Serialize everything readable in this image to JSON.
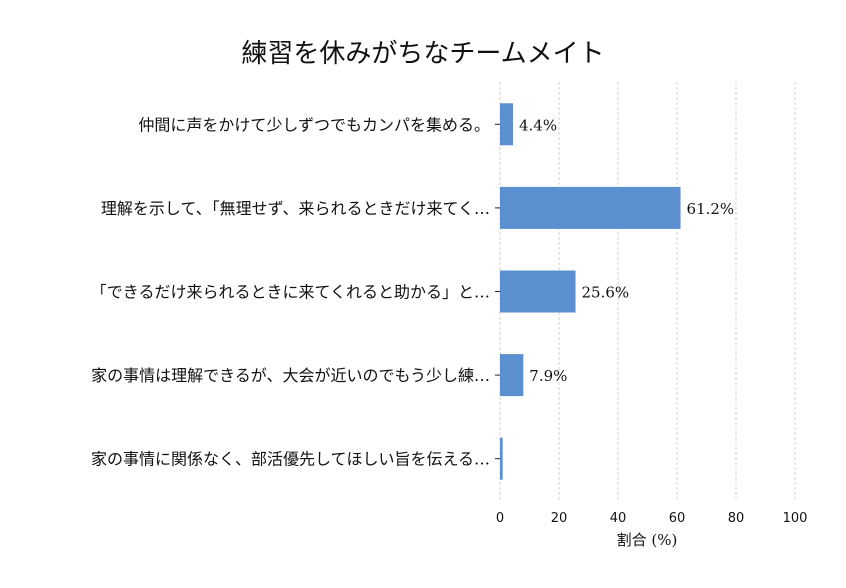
{
  "chart_data": {
    "type": "bar",
    "orientation": "horizontal",
    "title": "練習を休みがちなチームメイト",
    "xlabel": "割合 (%)",
    "ylabel": "",
    "xlim": [
      0,
      100
    ],
    "xticks": [
      "0",
      "20",
      "40",
      "60",
      "80",
      "100"
    ],
    "grid": "vertical dashed",
    "bar_color": "#5b8fd0",
    "categories": [
      "仲間に声をかけて少しずつでもカンパを集める。",
      "理解を示して、「無理せず、来られるときだけ来てく…",
      "「できるだけ来られるときに来てくれると助かる」と…",
      "家の事情は理解できるが、大会が近いのでもう少し練…",
      "家の事情に関係なく、部活優先してほしい旨を伝える…"
    ],
    "values": [
      4.4,
      61.2,
      25.6,
      7.9,
      0.9
    ],
    "labels": [
      "4.4%",
      "61.2%",
      "25.6%",
      "7.9%",
      ""
    ]
  }
}
